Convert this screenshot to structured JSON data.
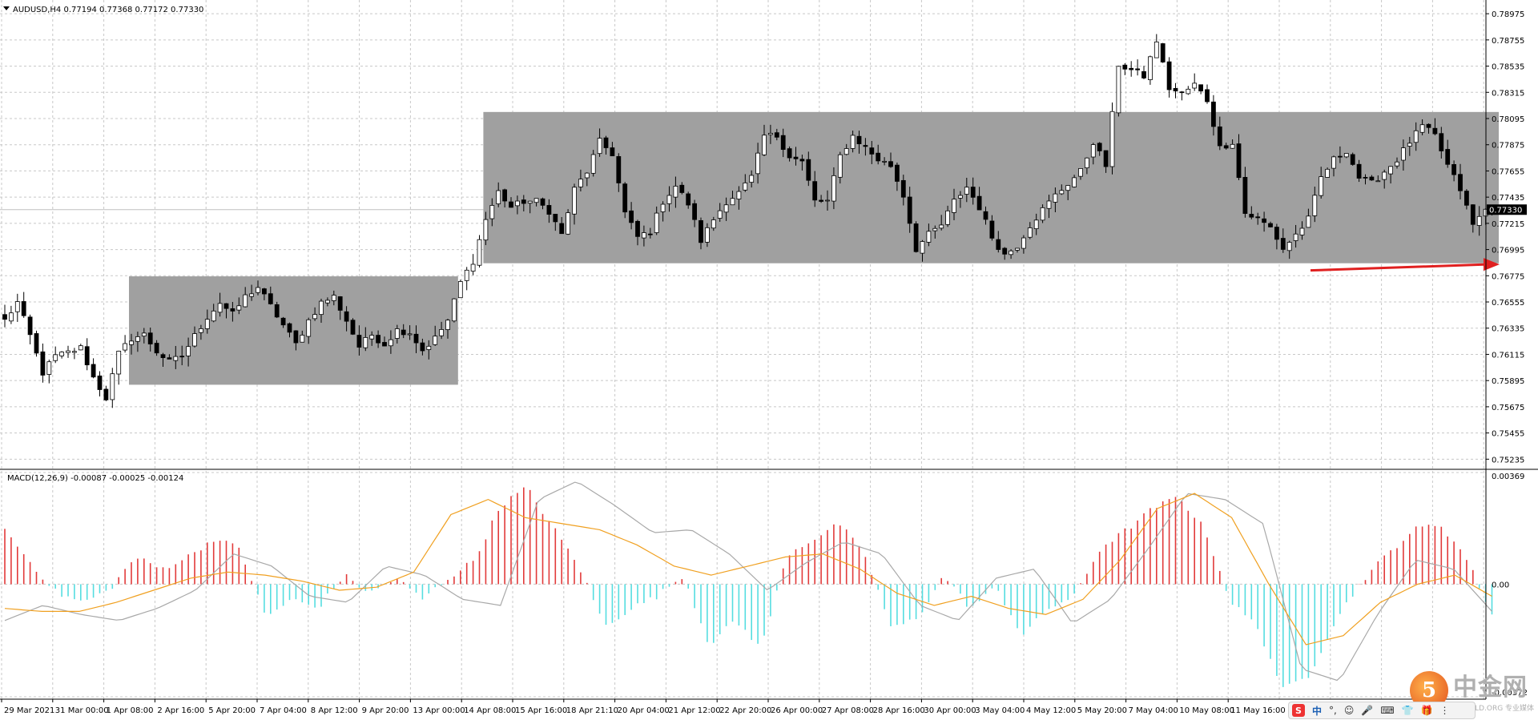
{
  "price_header": "AUDUSD,H4  0.77194 0.77368 0.77172 0.77330",
  "macd_header": "MACD(12,26,9) -0.00087 -0.00025 -0.00124",
  "current_price_label": "0.77330",
  "colors": {
    "background": "#ffffff",
    "grid": "#c8c8c8",
    "bull_candle": "#ffffff",
    "bear_candle": "#000000",
    "range_box": "#a0a0a0",
    "macd_positive": "#e23a3a",
    "macd_negative": "#55dde0",
    "macd_line": "#a8a8a8",
    "signal_line": "#f0a020",
    "arrow": "#e02020"
  },
  "ime_bar": {
    "logo": "S",
    "items": [
      "中",
      "°,",
      "☺",
      "🎤",
      "⌨",
      "👕",
      "🎁",
      "⋮"
    ]
  },
  "watermark": {
    "logo_char": "5",
    "cn": "中金网",
    "en": "CNGOLD.ORG   专业媒体"
  },
  "chart_data": [
    {
      "type": "candlestick",
      "title": "AUDUSD,H4",
      "header_values": {
        "open": 0.77194,
        "high": 0.77368,
        "low": 0.77172,
        "close": 0.7733
      },
      "ylim": [
        0.7517,
        0.7907
      ],
      "y_ticks": [
        0.78975,
        0.78755,
        0.78535,
        0.78315,
        0.78095,
        0.77875,
        0.77655,
        0.77435,
        0.77215,
        0.76995,
        0.76775,
        0.76555,
        0.76335,
        0.76115,
        0.75895,
        0.75675,
        0.75455,
        0.75235
      ],
      "x_tick_labels": [
        "29 Mar 2021",
        "31 Mar 00:00",
        "1 Apr 08:00",
        "2 Apr 16:00",
        "5 Apr 20:00",
        "7 Apr 04:00",
        "8 Apr 12:00",
        "9 Apr 20:00",
        "13 Apr 00:00",
        "14 Apr 08:00",
        "15 Apr 16:00",
        "18 Apr 21:10",
        "20 Apr 04:00",
        "21 Apr 12:00",
        "22 Apr 20:00",
        "26 Apr 00:00",
        "27 Apr 08:00",
        "28 Apr 16:00",
        "30 Apr 00:00",
        "3 May 04:00",
        "4 May 12:00",
        "5 May 20:00",
        "7 May 04:00",
        "10 May 08:00",
        "11 May 16:00"
      ],
      "current_price": 0.7733,
      "grid": true,
      "range_boxes": [
        {
          "price_low": 0.7586,
          "price_high": 0.7677
        },
        {
          "price_low": 0.7688,
          "price_high": 0.7815
        }
      ],
      "arrow": "points right toward the lower edge of the upper range box (~0.7685)",
      "anchors": [
        [
          0,
          0.764
        ],
        [
          2,
          0.7655
        ],
        [
          4,
          0.7627
        ],
        [
          6,
          0.7596
        ],
        [
          8,
          0.761
        ],
        [
          10,
          0.7613
        ],
        [
          12,
          0.7617
        ],
        [
          14,
          0.7592
        ],
        [
          16,
          0.7575
        ],
        [
          18,
          0.7612
        ],
        [
          20,
          0.7625
        ],
        [
          22,
          0.7628
        ],
        [
          24,
          0.7614
        ],
        [
          26,
          0.7605
        ],
        [
          28,
          0.761
        ],
        [
          30,
          0.7627
        ],
        [
          32,
          0.7643
        ],
        [
          34,
          0.7655
        ],
        [
          36,
          0.7645
        ],
        [
          38,
          0.766
        ],
        [
          40,
          0.7668
        ],
        [
          42,
          0.7652
        ],
        [
          44,
          0.7636
        ],
        [
          46,
          0.762
        ],
        [
          48,
          0.764
        ],
        [
          50,
          0.7655
        ],
        [
          52,
          0.766
        ],
        [
          54,
          0.764
        ],
        [
          56,
          0.7618
        ],
        [
          58,
          0.7628
        ],
        [
          60,
          0.762
        ],
        [
          62,
          0.7632
        ],
        [
          64,
          0.763
        ],
        [
          66,
          0.7615
        ],
        [
          68,
          0.7625
        ],
        [
          70,
          0.764
        ],
        [
          72,
          0.7672
        ],
        [
          74,
          0.769
        ],
        [
          76,
          0.7725
        ],
        [
          78,
          0.7748
        ],
        [
          80,
          0.7735
        ],
        [
          82,
          0.774
        ],
        [
          84,
          0.774
        ],
        [
          86,
          0.7732
        ],
        [
          88,
          0.7712
        ],
        [
          90,
          0.775
        ],
        [
          92,
          0.7765
        ],
        [
          94,
          0.779
        ],
        [
          96,
          0.778
        ],
        [
          98,
          0.773
        ],
        [
          100,
          0.771
        ],
        [
          102,
          0.7715
        ],
        [
          104,
          0.774
        ],
        [
          106,
          0.7753
        ],
        [
          108,
          0.7738
        ],
        [
          110,
          0.7707
        ],
        [
          112,
          0.7725
        ],
        [
          114,
          0.774
        ],
        [
          116,
          0.7747
        ],
        [
          118,
          0.776
        ],
        [
          120,
          0.7795
        ],
        [
          122,
          0.7795
        ],
        [
          124,
          0.7778
        ],
        [
          126,
          0.7773
        ],
        [
          128,
          0.774
        ],
        [
          130,
          0.774
        ],
        [
          132,
          0.7778
        ],
        [
          134,
          0.7795
        ],
        [
          136,
          0.7785
        ],
        [
          138,
          0.7775
        ],
        [
          140,
          0.777
        ],
        [
          142,
          0.7745
        ],
        [
          144,
          0.77
        ],
        [
          146,
          0.7712
        ],
        [
          148,
          0.772
        ],
        [
          150,
          0.774
        ],
        [
          152,
          0.7752
        ],
        [
          154,
          0.7735
        ],
        [
          156,
          0.771
        ],
        [
          158,
          0.7695
        ],
        [
          160,
          0.7703
        ],
        [
          162,
          0.772
        ],
        [
          164,
          0.7733
        ],
        [
          166,
          0.7745
        ],
        [
          168,
          0.7755
        ],
        [
          170,
          0.7765
        ],
        [
          172,
          0.779
        ],
        [
          174,
          0.777
        ],
        [
          176,
          0.7855
        ],
        [
          178,
          0.785
        ],
        [
          180,
          0.7845
        ],
        [
          182,
          0.7875
        ],
        [
          184,
          0.7835
        ],
        [
          186,
          0.783
        ],
        [
          188,
          0.7838
        ],
        [
          190,
          0.7825
        ],
        [
          192,
          0.7785
        ],
        [
          194,
          0.779
        ],
        [
          196,
          0.773
        ],
        [
          198,
          0.7725
        ],
        [
          200,
          0.7718
        ],
        [
          202,
          0.77
        ],
        [
          204,
          0.7712
        ],
        [
          206,
          0.7725
        ],
        [
          208,
          0.776
        ],
        [
          210,
          0.7775
        ],
        [
          212,
          0.7783
        ],
        [
          214,
          0.776
        ],
        [
          216,
          0.7755
        ],
        [
          218,
          0.7765
        ],
        [
          220,
          0.7775
        ],
        [
          222,
          0.779
        ],
        [
          224,
          0.7803
        ],
        [
          226,
          0.7795
        ],
        [
          228,
          0.777
        ],
        [
          230,
          0.775
        ],
        [
          232,
          0.772
        ],
        [
          234,
          0.7733
        ]
      ],
      "count": 236
    },
    {
      "type": "macd",
      "title": "MACD(12,26,9)",
      "header_values": {
        "macd": -0.00087,
        "signal": -0.00025,
        "histogram": -0.00124
      },
      "ylim": [
        -0.00372,
        0.00369
      ],
      "y_ticks": [
        0.00369,
        0.0,
        -0.00372
      ],
      "y_tick_labels": [
        "0.00369",
        "0.00",
        "-0.00372"
      ],
      "series": [
        {
          "role": "histogram",
          "values": [
            0.0018,
            0.0007,
            -0.0003,
            -0.0006,
            -0.0002,
            0.0009,
            0.0005,
            0.0009,
            0.0015,
            0.0012,
            -0.0011,
            -0.0005,
            -0.0008,
            0.0003,
            -0.0003,
            0.0002,
            -0.0005,
            0.0002,
            0.0008,
            0.0026,
            0.0032,
            0.0019,
            0.0006,
            -0.0014,
            -0.0008,
            -0.0004,
            0.0003,
            -0.002,
            -0.0012,
            -0.0021,
            0.001,
            0.0015,
            0.002,
            0.0009,
            -0.0015,
            -0.0011,
            0.0003,
            -0.0008,
            -0.0001,
            -0.0017,
            -0.0008,
            -0.0004,
            0.0012,
            0.0018,
            0.0025,
            0.0029,
            0.0018,
            -0.0006,
            -0.0014,
            -0.0035,
            -0.003,
            -0.0012,
            0.0001,
            0.001,
            0.0018,
            0.002,
            0.0009,
            -0.001
          ]
        },
        {
          "role": "macd_line",
          "values": [
            -0.0012,
            -0.0007,
            -0.001,
            -0.0012,
            -0.0008,
            -0.0002,
            0.001,
            0.0006,
            -0.0004,
            -0.0006,
            0.0006,
            0.0003,
            -0.0005,
            -0.0007,
            0.0028,
            0.0034,
            0.0026,
            0.0017,
            0.0018,
            0.001,
            -0.0002,
            0.0007,
            0.0014,
            0.001,
            -0.0007,
            -0.0012,
            0.0002,
            0.0005,
            -0.0013,
            -0.0005,
            0.0012,
            0.003,
            0.0028,
            0.002,
            -0.0028,
            -0.0032,
            -0.001,
            0.0008,
            0.0005,
            -0.0009
          ]
        },
        {
          "role": "signal_line",
          "values": [
            -0.0008,
            -0.0009,
            -0.0009,
            -0.0006,
            -0.0002,
            0.0002,
            0.0004,
            0.0003,
            0.0001,
            -0.0002,
            -0.0001,
            0.0004,
            0.0023,
            0.0028,
            0.0022,
            0.002,
            0.0018,
            0.0013,
            0.0006,
            0.0003,
            0.0006,
            0.0009,
            0.001,
            0.0005,
            -0.0003,
            -0.0007,
            -0.0004,
            -0.0008,
            -0.001,
            -0.0005,
            0.0008,
            0.0025,
            0.003,
            0.0022,
            0.0,
            -0.002,
            -0.0017,
            -0.0006,
            0.0,
            0.0003,
            -0.0004
          ]
        }
      ]
    }
  ]
}
